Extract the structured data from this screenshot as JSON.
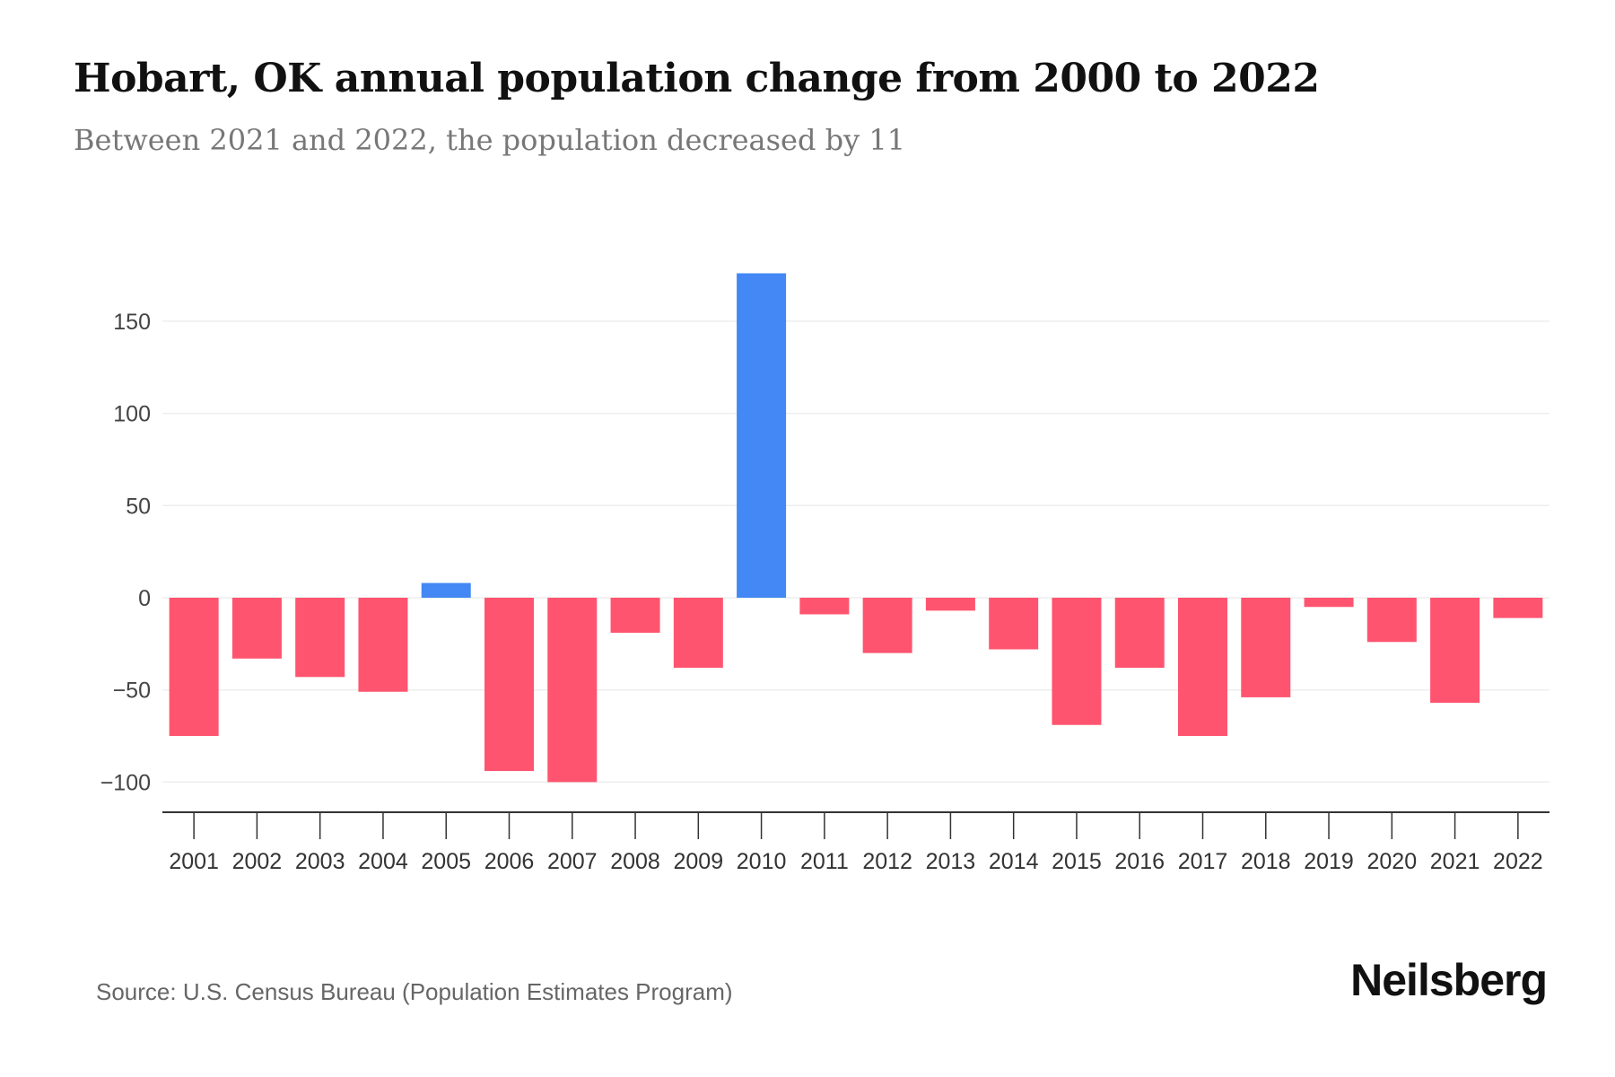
{
  "chart_data": {
    "type": "bar",
    "title": "Hobart, OK annual population change from 2000 to 2022",
    "subtitle": "Between 2021 and 2022, the population decreased by 11",
    "xlabel": "",
    "ylabel": "",
    "categories": [
      "2001",
      "2002",
      "2003",
      "2004",
      "2005",
      "2006",
      "2007",
      "2008",
      "2009",
      "2010",
      "2011",
      "2012",
      "2013",
      "2014",
      "2015",
      "2016",
      "2017",
      "2018",
      "2019",
      "2020",
      "2021",
      "2022"
    ],
    "values": [
      -75,
      -33,
      -43,
      -51,
      8,
      -94,
      -100,
      -19,
      -38,
      176,
      -9,
      -30,
      -7,
      -28,
      -69,
      -38,
      -75,
      -54,
      -5,
      -24,
      -57,
      -11
    ],
    "yticks": [
      150,
      100,
      50,
      0,
      -50,
      -100
    ],
    "ytick_labels": [
      "150",
      "100",
      "50",
      "0",
      "−50",
      "−100"
    ],
    "ylim": [
      -115,
      185
    ],
    "grid": true,
    "colors": {
      "positive": "#4388f5",
      "negative": "#ff546f",
      "grid": "#eeeeee",
      "axis": "#333333"
    }
  },
  "source": "Source: U.S. Census Bureau (Population Estimates Program)",
  "brand": "Neilsberg"
}
